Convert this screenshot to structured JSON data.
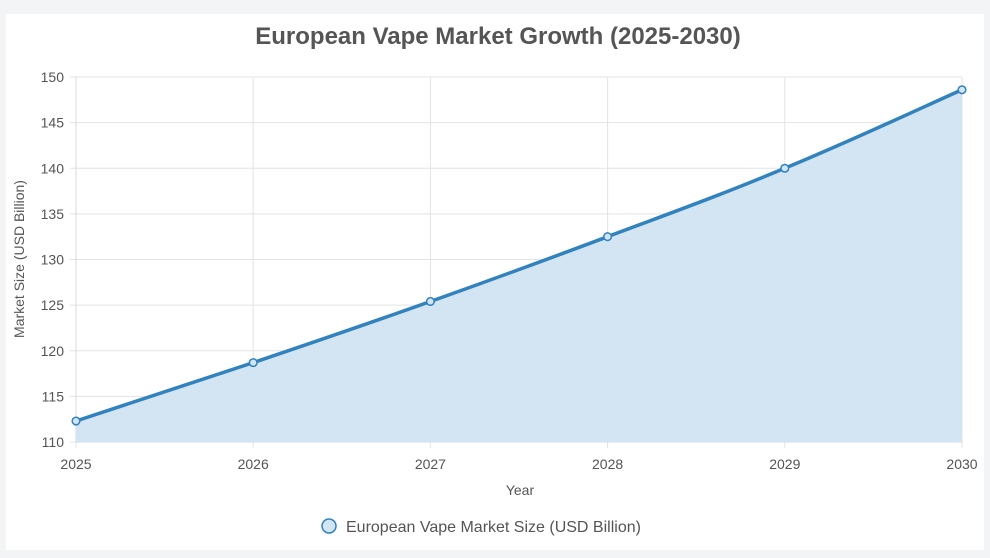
{
  "chart_data": {
    "type": "area",
    "title": "European Vape Market Growth (2025-2030)",
    "xlabel": "Year",
    "ylabel": "Market Size (USD Billion)",
    "x": [
      "2025",
      "2026",
      "2027",
      "2028",
      "2029",
      "2030"
    ],
    "ylim": [
      110,
      150
    ],
    "yticks": [
      "110",
      "115",
      "120",
      "125",
      "130",
      "135",
      "140",
      "145",
      "150"
    ],
    "series": [
      {
        "name": "European Vape Market Size (USD Billion)",
        "values": [
          112.3,
          118.7,
          125.4,
          132.5,
          140.0,
          148.6
        ]
      }
    ],
    "grid": true,
    "legend": "bottom",
    "colors": {
      "line": "#3182bd",
      "fill": "#d3e5f3",
      "grid": "#e3e3e3",
      "text": "#555555",
      "title": "#555555"
    }
  }
}
